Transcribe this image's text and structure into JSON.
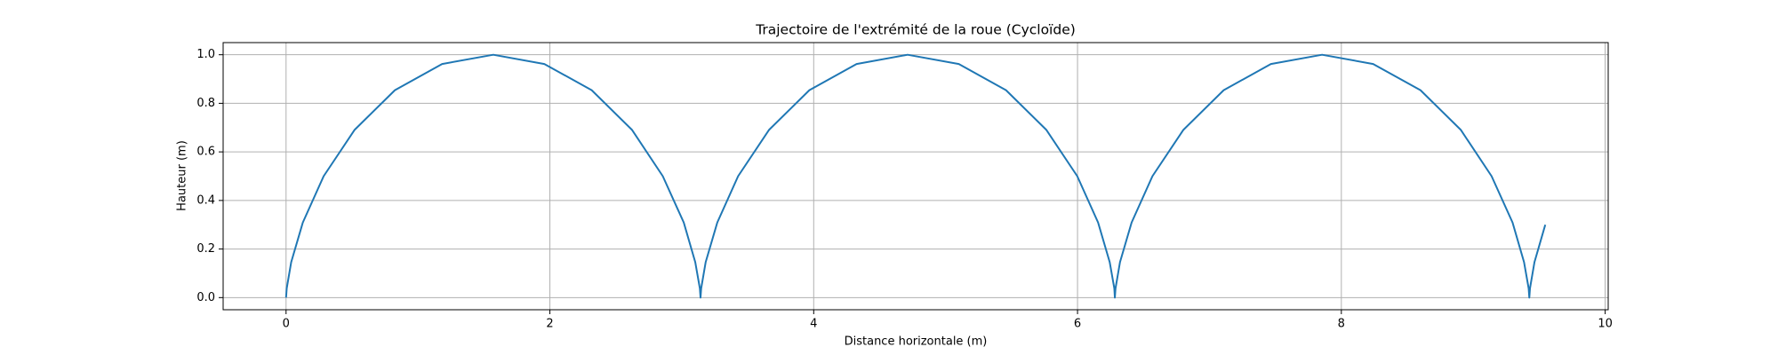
{
  "chart_data": {
    "type": "line",
    "title": "Trajectoire de l'extrémité de la roue (Cycloïde)",
    "x_label": "Distance horizontale (m)",
    "y_label": "Hauteur (m)",
    "grid": true,
    "x": [
      0,
      0.005,
      0.039,
      0.127,
      0.285,
      0.52,
      0.825,
      1.183,
      1.571,
      1.958,
      2.317,
      2.622,
      2.856,
      3.015,
      3.102,
      3.137,
      3.142,
      3.147,
      3.181,
      3.269,
      3.427,
      3.662,
      3.967,
      4.325,
      4.712,
      5.1,
      5.458,
      5.763,
      5.998,
      6.156,
      6.244,
      6.279,
      6.283,
      6.288,
      6.322,
      6.41,
      6.568,
      6.803,
      7.108,
      7.466,
      7.854,
      8.241,
      8.6,
      8.905,
      9.139,
      9.298,
      9.385,
      9.42,
      9.425,
      9.43,
      9.464,
      9.546
    ],
    "series": [
      {
        "color": "#1f77b4",
        "values": [
          0,
          0.038,
          0.146,
          0.309,
          0.5,
          0.691,
          0.854,
          0.962,
          1,
          0.962,
          0.854,
          0.691,
          0.5,
          0.309,
          0.146,
          0.038,
          0,
          0.038,
          0.146,
          0.309,
          0.5,
          0.691,
          0.854,
          0.962,
          1,
          0.962,
          0.854,
          0.691,
          0.5,
          0.309,
          0.146,
          0.038,
          0,
          0.038,
          0.146,
          0.309,
          0.5,
          0.691,
          0.854,
          0.962,
          1,
          0.962,
          0.854,
          0.691,
          0.5,
          0.309,
          0.146,
          0.038,
          0,
          0.038,
          0.146,
          0.3
        ]
      }
    ],
    "xlim": [
      -0.477,
      10.023
    ],
    "ylim": [
      -0.05,
      1.05
    ],
    "xticks": [
      0,
      2,
      4,
      6,
      8,
      10
    ],
    "yticks": [
      {
        "value": 0,
        "label": "0.0"
      },
      {
        "value": 0.2,
        "label": "0.2"
      },
      {
        "value": 0.4,
        "label": "0.4"
      },
      {
        "value": 0.6,
        "label": "0.6"
      },
      {
        "value": 0.8,
        "label": "0.8"
      },
      {
        "value": 1,
        "label": "1.0"
      }
    ]
  }
}
